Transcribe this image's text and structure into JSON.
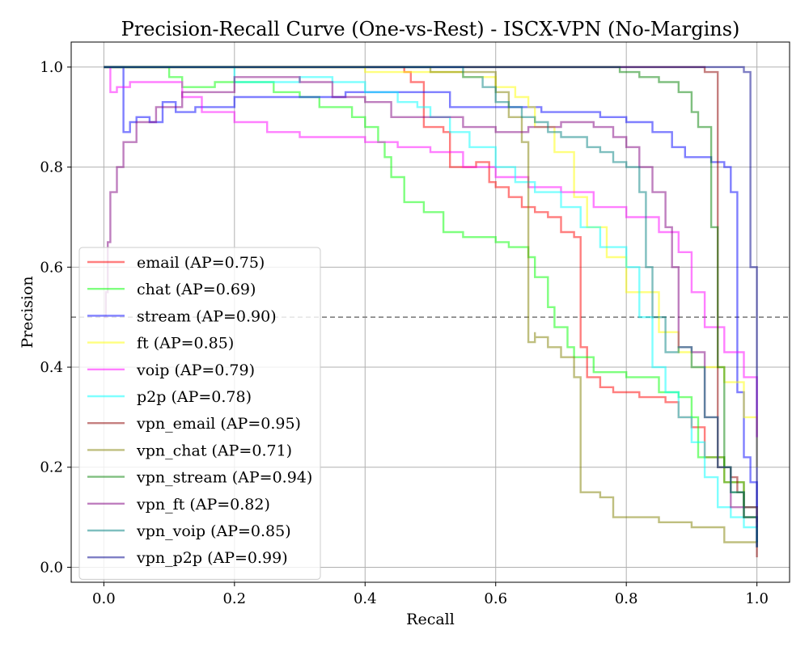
{
  "chart_data": {
    "type": "line",
    "title": "Precision-Recall Curve (One-vs-Rest) - ISCX-VPN (No-Margins)",
    "xlabel": "Recall",
    "ylabel": "Precision",
    "xlim": [
      -0.05,
      1.05
    ],
    "ylim": [
      -0.03,
      1.05
    ],
    "xticks": [
      0.0,
      0.2,
      0.4,
      0.6,
      0.8,
      1.0
    ],
    "xtick_labels": [
      "0.0",
      "0.2",
      "0.4",
      "0.6",
      "0.8",
      "1.0"
    ],
    "yticks": [
      0.0,
      0.2,
      0.4,
      0.6,
      0.8,
      1.0
    ],
    "ytick_labels": [
      "0.0",
      "0.2",
      "0.4",
      "0.6",
      "0.8",
      "1.0"
    ],
    "grid": true,
    "legend_position": "lower-left",
    "reference_line": {
      "y": 0.5,
      "style": "dashed",
      "color": "#808080"
    },
    "series": [
      {
        "name": "email (AP=0.75)",
        "color": "#ff0000",
        "x": [
          0.0,
          0.46,
          0.47,
          0.49,
          0.49,
          0.52,
          0.53,
          0.57,
          0.59,
          0.6,
          0.62,
          0.64,
          0.66,
          0.68,
          0.7,
          0.72,
          0.73,
          0.73,
          0.74,
          0.76,
          0.78,
          0.82,
          0.86,
          0.88,
          0.9,
          0.92,
          0.95,
          0.98,
          1.0
        ],
        "y": [
          1.0,
          0.99,
          0.97,
          0.95,
          0.88,
          0.87,
          0.8,
          0.81,
          0.77,
          0.76,
          0.74,
          0.72,
          0.71,
          0.7,
          0.67,
          0.66,
          0.5,
          0.44,
          0.38,
          0.36,
          0.35,
          0.34,
          0.33,
          0.3,
          0.28,
          0.22,
          0.17,
          0.12,
          0.09
        ]
      },
      {
        "name": "chat (AP=0.69)",
        "color": "#00ff00",
        "x": [
          0.0,
          0.1,
          0.12,
          0.17,
          0.26,
          0.3,
          0.33,
          0.38,
          0.4,
          0.42,
          0.43,
          0.44,
          0.46,
          0.49,
          0.52,
          0.52,
          0.55,
          0.6,
          0.62,
          0.65,
          0.66,
          0.68,
          0.69,
          0.71,
          0.72,
          0.75,
          0.8,
          0.85,
          0.88,
          0.9,
          0.91,
          0.95,
          0.98,
          1.0
        ],
        "y": [
          1.0,
          0.98,
          0.96,
          0.97,
          0.95,
          0.94,
          0.92,
          0.9,
          0.88,
          0.85,
          0.82,
          0.78,
          0.73,
          0.71,
          0.69,
          0.67,
          0.66,
          0.65,
          0.64,
          0.62,
          0.58,
          0.52,
          0.48,
          0.44,
          0.42,
          0.39,
          0.38,
          0.35,
          0.34,
          0.3,
          0.22,
          0.17,
          0.12,
          0.1
        ]
      },
      {
        "name": "stream (AP=0.90)",
        "color": "#0000ff",
        "x": [
          0.0,
          0.02,
          0.03,
          0.03,
          0.04,
          0.05,
          0.07,
          0.09,
          0.11,
          0.14,
          0.2,
          0.25,
          0.3,
          0.37,
          0.46,
          0.53,
          0.58,
          0.62,
          0.67,
          0.72,
          0.76,
          0.8,
          0.84,
          0.87,
          0.89,
          0.93,
          0.95,
          0.96,
          0.97,
          0.97,
          0.98,
          0.99,
          1.0
        ],
        "y": [
          1.0,
          1.0,
          0.98,
          0.87,
          0.89,
          0.9,
          0.89,
          0.93,
          0.91,
          0.92,
          0.94,
          0.94,
          0.94,
          0.95,
          0.95,
          0.92,
          0.92,
          0.92,
          0.91,
          0.91,
          0.9,
          0.89,
          0.87,
          0.84,
          0.82,
          0.81,
          0.8,
          0.75,
          0.5,
          0.35,
          0.22,
          0.17,
          0.12
        ]
      },
      {
        "name": "ft (AP=0.85)",
        "color": "#ffff00",
        "x": [
          0.0,
          0.4,
          0.5,
          0.55,
          0.6,
          0.63,
          0.65,
          0.66,
          0.69,
          0.72,
          0.74,
          0.77,
          0.8,
          0.85,
          0.88,
          0.9,
          0.95,
          0.98,
          1.0
        ],
        "y": [
          1.0,
          0.99,
          0.99,
          0.98,
          0.96,
          0.94,
          0.92,
          0.88,
          0.83,
          0.74,
          0.68,
          0.62,
          0.55,
          0.47,
          0.43,
          0.4,
          0.37,
          0.3,
          0.2
        ]
      },
      {
        "name": "voip (AP=0.79)",
        "color": "#ff00ff",
        "x": [
          0.0,
          0.01,
          0.02,
          0.04,
          0.08,
          0.12,
          0.15,
          0.2,
          0.25,
          0.3,
          0.35,
          0.4,
          0.45,
          0.5,
          0.55,
          0.6,
          0.65,
          0.7,
          0.75,
          0.8,
          0.85,
          0.88,
          0.9,
          0.92,
          0.95,
          0.98,
          1.0
        ],
        "y": [
          1.0,
          0.95,
          0.96,
          0.97,
          0.97,
          0.94,
          0.91,
          0.89,
          0.87,
          0.86,
          0.86,
          0.85,
          0.84,
          0.83,
          0.8,
          0.78,
          0.76,
          0.75,
          0.72,
          0.7,
          0.67,
          0.63,
          0.55,
          0.48,
          0.43,
          0.38,
          0.26
        ]
      },
      {
        "name": "p2p (AP=0.78)",
        "color": "#00ffff",
        "x": [
          0.0,
          0.18,
          0.2,
          0.3,
          0.35,
          0.4,
          0.45,
          0.48,
          0.5,
          0.53,
          0.56,
          0.6,
          0.63,
          0.66,
          0.7,
          0.73,
          0.76,
          0.8,
          0.82,
          0.84,
          0.86,
          0.88,
          0.9,
          0.92,
          0.94,
          0.96,
          0.98,
          1.0
        ],
        "y": [
          1.0,
          1.0,
          0.97,
          0.98,
          0.97,
          0.95,
          0.93,
          0.92,
          0.9,
          0.87,
          0.84,
          0.8,
          0.77,
          0.75,
          0.72,
          0.68,
          0.64,
          0.6,
          0.5,
          0.4,
          0.35,
          0.3,
          0.25,
          0.18,
          0.12,
          0.1,
          0.08,
          0.05
        ]
      },
      {
        "name": "vpn_email (AP=0.95)",
        "color": "#8b0000",
        "x": [
          0.0,
          0.9,
          0.92,
          0.94,
          0.94,
          0.96,
          0.97,
          0.98,
          1.0
        ],
        "y": [
          1.0,
          1.0,
          0.99,
          0.99,
          0.2,
          0.18,
          0.15,
          0.1,
          0.02
        ]
      },
      {
        "name": "vpn_chat (AP=0.71)",
        "color": "#808000",
        "x": [
          0.0,
          0.5,
          0.6,
          0.62,
          0.64,
          0.65,
          0.65,
          0.66,
          0.66,
          0.68,
          0.7,
          0.72,
          0.73,
          0.73,
          0.76,
          0.78,
          0.8,
          0.85,
          0.9,
          0.95,
          1.0
        ],
        "y": [
          1.0,
          0.99,
          0.95,
          0.9,
          0.85,
          0.7,
          0.45,
          0.47,
          0.46,
          0.44,
          0.42,
          0.38,
          0.36,
          0.15,
          0.14,
          0.1,
          0.1,
          0.09,
          0.08,
          0.05,
          0.04
        ]
      },
      {
        "name": "vpn_stream (AP=0.94)",
        "color": "#008000",
        "x": [
          0.0,
          0.79,
          0.82,
          0.85,
          0.88,
          0.9,
          0.91,
          0.93,
          0.94,
          0.95,
          0.96,
          0.98,
          1.0
        ],
        "y": [
          1.0,
          0.99,
          0.98,
          0.97,
          0.95,
          0.91,
          0.88,
          0.68,
          0.4,
          0.2,
          0.15,
          0.1,
          0.05
        ]
      },
      {
        "name": "vpn_ft (AP=0.82)",
        "color": "#800080",
        "x": [
          0.0,
          0.003,
          0.006,
          0.01,
          0.02,
          0.03,
          0.05,
          0.08,
          0.12,
          0.2,
          0.3,
          0.35,
          0.4,
          0.44,
          0.5,
          0.55,
          0.6,
          0.65,
          0.7,
          0.75,
          0.78,
          0.8,
          0.82,
          0.84,
          0.86,
          0.87,
          0.88,
          0.9,
          0.92,
          0.94,
          0.96,
          1.0
        ],
        "y": [
          0.5,
          0.55,
          0.65,
          0.75,
          0.8,
          0.85,
          0.89,
          0.92,
          0.95,
          0.98,
          0.97,
          0.94,
          0.93,
          0.9,
          0.9,
          0.88,
          0.87,
          0.88,
          0.89,
          0.88,
          0.86,
          0.84,
          0.8,
          0.75,
          0.68,
          0.6,
          0.44,
          0.43,
          0.3,
          0.2,
          0.12,
          0.08
        ]
      },
      {
        "name": "vpn_voip (AP=0.85)",
        "color": "#008080",
        "x": [
          0.0,
          0.55,
          0.58,
          0.6,
          0.62,
          0.64,
          0.66,
          0.68,
          0.7,
          0.72,
          0.74,
          0.76,
          0.78,
          0.8,
          0.82,
          0.83,
          0.84,
          0.86,
          0.88,
          0.9,
          0.92,
          0.94,
          0.96,
          0.98,
          1.0
        ],
        "y": [
          1.0,
          0.98,
          0.96,
          0.93,
          0.92,
          0.9,
          0.89,
          0.87,
          0.86,
          0.86,
          0.84,
          0.83,
          0.81,
          0.8,
          0.75,
          0.6,
          0.5,
          0.43,
          0.44,
          0.4,
          0.3,
          0.2,
          0.15,
          0.1,
          0.04
        ]
      },
      {
        "name": "vpn_p2p (AP=0.99)",
        "color": "#00008b",
        "x": [
          0.0,
          0.97,
          0.98,
          0.99,
          0.99,
          1.0,
          1.0
        ],
        "y": [
          1.0,
          1.0,
          0.99,
          0.88,
          0.6,
          0.2,
          0.04
        ]
      }
    ]
  }
}
